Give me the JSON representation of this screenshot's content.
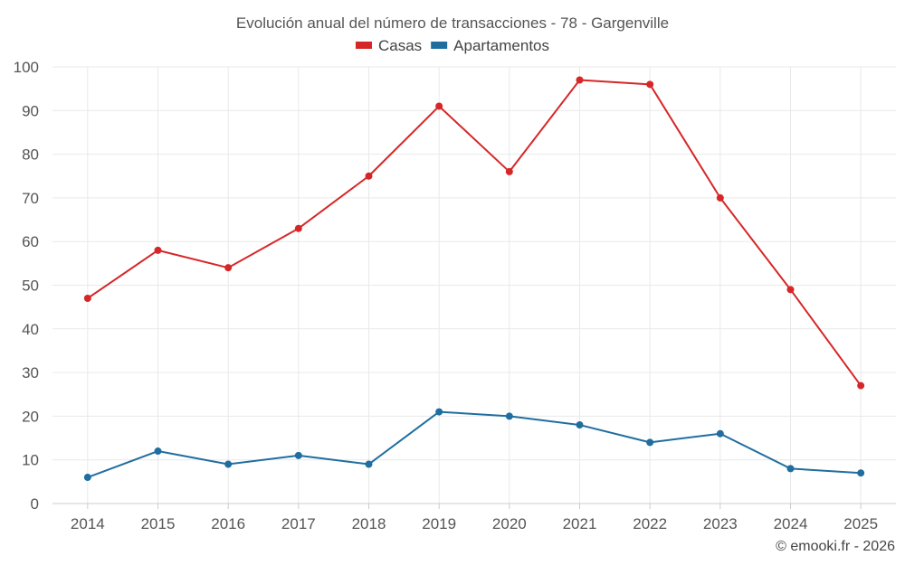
{
  "chart_data": {
    "type": "line",
    "title": "Evolución anual del número de transacciones - 78 - Gargenville",
    "xlabel": "",
    "ylabel": "",
    "categories": [
      "2014",
      "2015",
      "2016",
      "2017",
      "2018",
      "2019",
      "2020",
      "2021",
      "2022",
      "2023",
      "2024",
      "2025"
    ],
    "ylim": [
      0,
      100
    ],
    "yticks": [
      0,
      10,
      20,
      30,
      40,
      50,
      60,
      70,
      80,
      90,
      100
    ],
    "grid": true,
    "legend_position": "top-center",
    "series": [
      {
        "name": "Casas",
        "color": "#d62728",
        "values": [
          47,
          58,
          54,
          63,
          75,
          91,
          76,
          97,
          96,
          70,
          49,
          27
        ]
      },
      {
        "name": "Apartamentos",
        "color": "#1f6e9f",
        "values": [
          6,
          12,
          9,
          11,
          9,
          21,
          20,
          18,
          14,
          16,
          8,
          7
        ]
      }
    ]
  },
  "credit": "© emooki.fr - 2026"
}
